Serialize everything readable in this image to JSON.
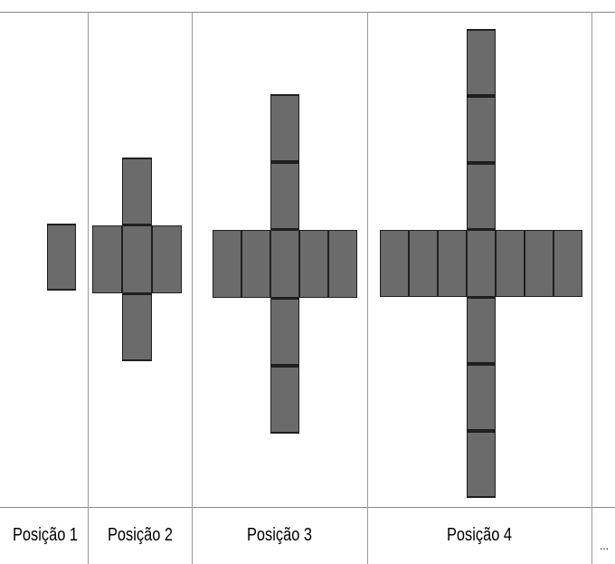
{
  "positions": [
    {
      "label": "Posição 1",
      "arm": 0
    },
    {
      "label": "Posição 2",
      "arm": 1
    },
    {
      "label": "Posição 3",
      "arm": 2
    },
    {
      "label": "Posição 4",
      "arm": 3
    }
  ],
  "ellipsis": "...",
  "colors": {
    "tile_fill": "#6b6b6b",
    "tile_border": "#1f1f1f",
    "grid": "#9a9a9a"
  }
}
